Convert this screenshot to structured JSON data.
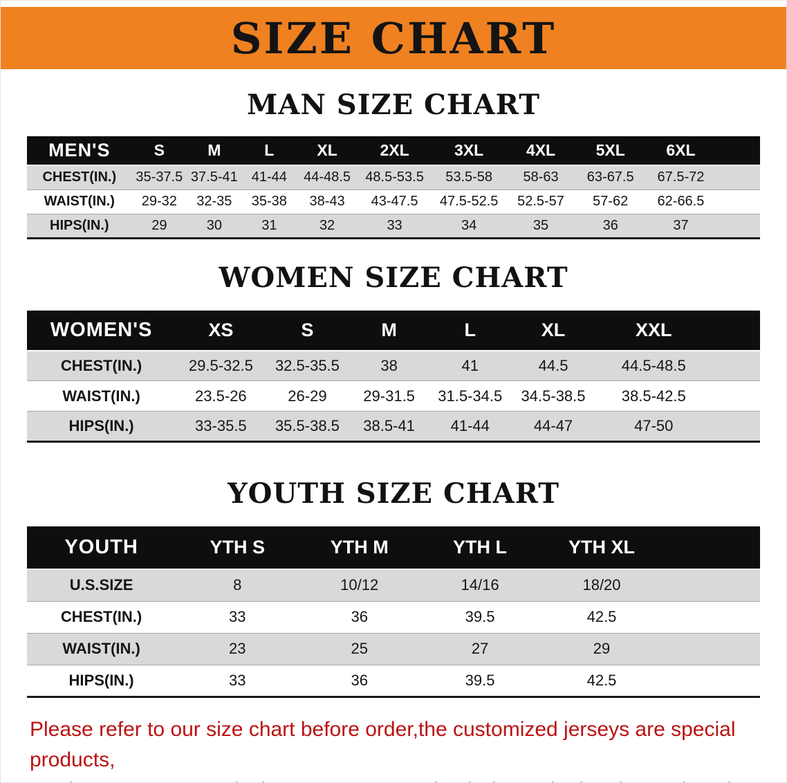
{
  "colors": {
    "banner_orange": "#ef8121",
    "header_black": "#0e0e0e",
    "row_gray": "#d9d9d9",
    "note_red": "#bb1210"
  },
  "banner": {
    "title": "SIZE CHART"
  },
  "sections": [
    {
      "heading": "MAN SIZE CHART",
      "table": {
        "header": [
          "MEN'S",
          "S",
          "M",
          "L",
          "XL",
          "2XL",
          "3XL",
          "4XL",
          "5XL",
          "6XL"
        ],
        "rows": [
          [
            "CHEST(IN.)",
            "35-37.5",
            "37.5-41",
            "41-44",
            "44-48.5",
            "48.5-53.5",
            "53.5-58",
            "58-63",
            "63-67.5",
            "67.5-72"
          ],
          [
            "WAIST(IN.)",
            "29-32",
            "32-35",
            "35-38",
            "38-43",
            "43-47.5",
            "47.5-52.5",
            "52.5-57",
            "57-62",
            "62-66.5"
          ],
          [
            "HIPS(IN.)",
            "29",
            "30",
            "31",
            "32",
            "33",
            "34",
            "35",
            "36",
            "37"
          ]
        ]
      }
    },
    {
      "heading": "WOMEN SIZE CHART",
      "table": {
        "header": [
          "WOMEN'S",
          "XS",
          "S",
          "M",
          "L",
          "XL",
          "XXL"
        ],
        "rows": [
          [
            "CHEST(IN.)",
            "29.5-32.5",
            "32.5-35.5",
            "38",
            "41",
            "44.5",
            "44.5-48.5"
          ],
          [
            "WAIST(IN.)",
            "23.5-26",
            "26-29",
            "29-31.5",
            "31.5-34.5",
            "34.5-38.5",
            "38.5-42.5"
          ],
          [
            "HIPS(IN.)",
            "33-35.5",
            "35.5-38.5",
            "38.5-41",
            "41-44",
            "44-47",
            "47-50"
          ]
        ]
      }
    },
    {
      "heading": "YOUTH SIZE CHART",
      "table": {
        "header": [
          "YOUTH",
          "YTH S",
          "YTH M",
          "YTH L",
          "YTH XL"
        ],
        "rows": [
          [
            "U.S.SIZE",
            "8",
            "10/12",
            "14/16",
            "18/20"
          ],
          [
            "CHEST(IN.)",
            "33",
            "36",
            "39.5",
            "42.5"
          ],
          [
            "WAIST(IN.)",
            "23",
            "25",
            "27",
            "29"
          ],
          [
            "HIPS(IN.)",
            "33",
            "36",
            "39.5",
            "42.5"
          ]
        ]
      }
    }
  ],
  "footer": {
    "line1": "Please refer to our size chart before order,the customized jerseys are special products,",
    "line2": "we don't accept cancel, change, teturn or refund after order has been placed!"
  }
}
